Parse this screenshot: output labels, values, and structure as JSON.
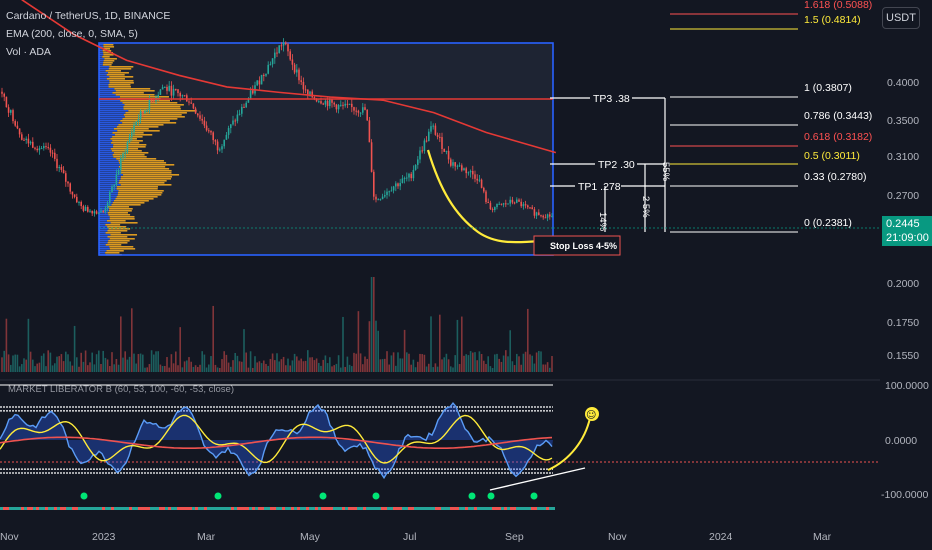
{
  "header": {
    "symbol_line": "Cardano / TetherUS, 1D, BINANCE",
    "ema_line": "EMA (200, close, 0, SMA, 5)",
    "vol_line": "Vol · ADA",
    "quote_currency_button": "USDT"
  },
  "colors": {
    "background": "#131722",
    "ema": "#e53935",
    "volume_profile": "#f0a71f",
    "volume_profile_blue": "#2962ff",
    "range_box": "#2962ff",
    "yellow": "#ffeb3b",
    "up": "#26a69a",
    "down": "#ef5350",
    "last_price": "#089981"
  },
  "chart_data": [
    {
      "type": "line",
      "name": "price",
      "x_ticks": [
        "Nov",
        "2023",
        "Mar",
        "May",
        "Jul",
        "Sep",
        "Nov",
        "2024",
        "Mar"
      ],
      "y_ticks": [
        "0.4000",
        "0.3500",
        "0.3100",
        "0.2700",
        "0.2445"
      ],
      "last_price": "0.2445",
      "countdown": "21:09:00",
      "close_path": [
        [
          "2022-10-20",
          0.445
        ],
        [
          "2022-11-01",
          0.39
        ],
        [
          "2022-11-15",
          0.33
        ],
        [
          "2022-12-01",
          0.315
        ],
        [
          "2022-12-20",
          0.255
        ],
        [
          "2023-01-01",
          0.25
        ],
        [
          "2023-01-20",
          0.35
        ],
        [
          "2023-02-05",
          0.395
        ],
        [
          "2023-02-20",
          0.38
        ],
        [
          "2023-03-10",
          0.32
        ],
        [
          "2023-03-25",
          0.37
        ],
        [
          "2023-04-17",
          0.455
        ],
        [
          "2023-05-01",
          0.385
        ],
        [
          "2023-05-20",
          0.37
        ],
        [
          "2023-06-05",
          0.365
        ],
        [
          "2023-06-10",
          0.265
        ],
        [
          "2023-06-20",
          0.28
        ],
        [
          "2023-07-01",
          0.29
        ],
        [
          "2023-07-14",
          0.345
        ],
        [
          "2023-07-25",
          0.305
        ],
        [
          "2023-08-10",
          0.29
        ],
        [
          "2023-08-17",
          0.255
        ],
        [
          "2023-09-01",
          0.265
        ],
        [
          "2023-09-12",
          0.25
        ],
        [
          "2023-09-25",
          0.2445
        ]
      ],
      "ema_path": [
        [
          "2022-10-20",
          0.575
        ],
        [
          "2022-11-15",
          0.515
        ],
        [
          "2022-12-15",
          0.465
        ],
        [
          "2023-01-15",
          0.43
        ],
        [
          "2023-02-15",
          0.41
        ],
        [
          "2023-03-15",
          0.395
        ],
        [
          "2023-04-15",
          0.388
        ],
        [
          "2023-05-15",
          0.382
        ],
        [
          "2023-06-15",
          0.378
        ],
        [
          "2023-07-15",
          0.362
        ],
        [
          "2023-08-15",
          0.338
        ],
        [
          "2023-09-25",
          0.315
        ]
      ],
      "range_high": 0.453,
      "range_low": 0.229
    },
    {
      "type": "table",
      "name": "fibonacci levels",
      "levels": [
        {
          "label": "1.618 (0.5088)",
          "color": "#ff5252"
        },
        {
          "label": "1.5 (0.4814)",
          "color": "#ffeb3b"
        },
        {
          "label": "1 (0.3807)",
          "color": "#ffffff"
        },
        {
          "label": "0.786 (0.3443)",
          "color": "#ffffff"
        },
        {
          "label": "0.618 (0.3182)",
          "color": "#ff5252"
        },
        {
          "label": "0.5 (0.3011)",
          "color": "#ffeb3b"
        },
        {
          "label": "0.33 (0.2780)",
          "color": "#ffffff"
        },
        {
          "label": "0 (0.2381)",
          "color": "#ffffff"
        }
      ]
    },
    {
      "type": "table",
      "name": "annotations",
      "targets": [
        "TP3 .38",
        "TP2 .30",
        "TP1 .278"
      ],
      "percent_labels": [
        "14%",
        "2 5%",
        "55%"
      ],
      "stop_loss": "Stop Loss 4-5%",
      "smiley": "☺"
    },
    {
      "type": "bar",
      "name": "volume",
      "y_ticks": [
        "0.2000",
        "0.1750",
        "0.1550"
      ]
    },
    {
      "type": "line",
      "name": "oscillator",
      "title": "MARKET LIBERATOR B (60, 53, 100, -60, -53, close)",
      "y_ticks": [
        "100.0000",
        "0.0000",
        "-100.0000"
      ],
      "ylim": [
        -100,
        100
      ]
    }
  ]
}
